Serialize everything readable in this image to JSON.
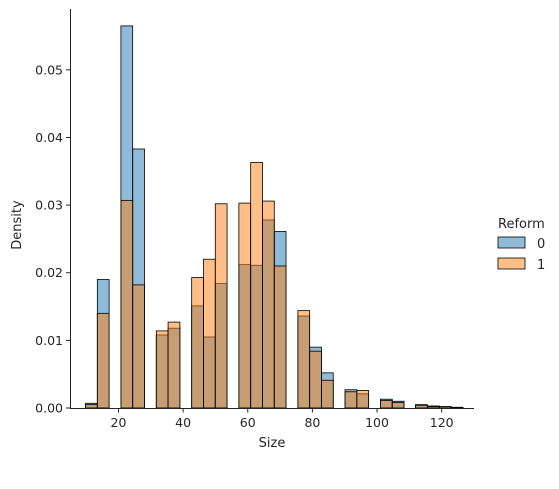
{
  "chart_data": {
    "type": "bar",
    "subtype": "histogram",
    "xlabel": "Size",
    "ylabel": "Density",
    "xlim": [
      5,
      130
    ],
    "ylim": [
      0,
      0.059
    ],
    "x_ticks": [
      20,
      40,
      60,
      80,
      100,
      120
    ],
    "y_ticks": [
      0.0,
      0.01,
      0.02,
      0.03,
      0.04,
      0.05
    ],
    "y_tick_labels": [
      "0.00",
      "0.01",
      "0.02",
      "0.03",
      "0.04",
      "0.05"
    ],
    "bin_width": 3.65,
    "bin_starts": [
      9.8,
      13.45,
      20.75,
      24.4,
      31.7,
      35.35,
      42.65,
      46.3,
      49.95,
      57.25,
      60.9,
      64.55,
      68.2,
      75.5,
      79.15,
      82.8,
      90.1,
      93.75,
      101.05,
      104.7,
      111.9,
      115.65,
      119.3,
      122.95
    ],
    "series": [
      {
        "name": "0",
        "color": "#1f77b4",
        "values": [
          0.0007,
          0.019,
          0.0565,
          0.0383,
          0.0108,
          0.0118,
          0.0151,
          0.0105,
          0.0184,
          0.0212,
          0.0211,
          0.0278,
          0.0261,
          0.0136,
          0.009,
          0.0052,
          0.0027,
          0.0021,
          0.0013,
          0.001,
          0.0005,
          0.0003,
          0.0002,
          0.0001
        ]
      },
      {
        "name": "1",
        "color": "#ff7f0e",
        "values": [
          0.0005,
          0.014,
          0.0307,
          0.0182,
          0.0114,
          0.0127,
          0.0193,
          0.022,
          0.0302,
          0.0303,
          0.0363,
          0.0306,
          0.021,
          0.0144,
          0.0084,
          0.0041,
          0.0024,
          0.0026,
          0.0011,
          0.0008,
          0.0004,
          0.0002,
          0.0002,
          0.0001
        ]
      }
    ],
    "legend": {
      "title": "Reform",
      "placement": "right",
      "entries": [
        "0",
        "1"
      ]
    },
    "grid": false
  }
}
